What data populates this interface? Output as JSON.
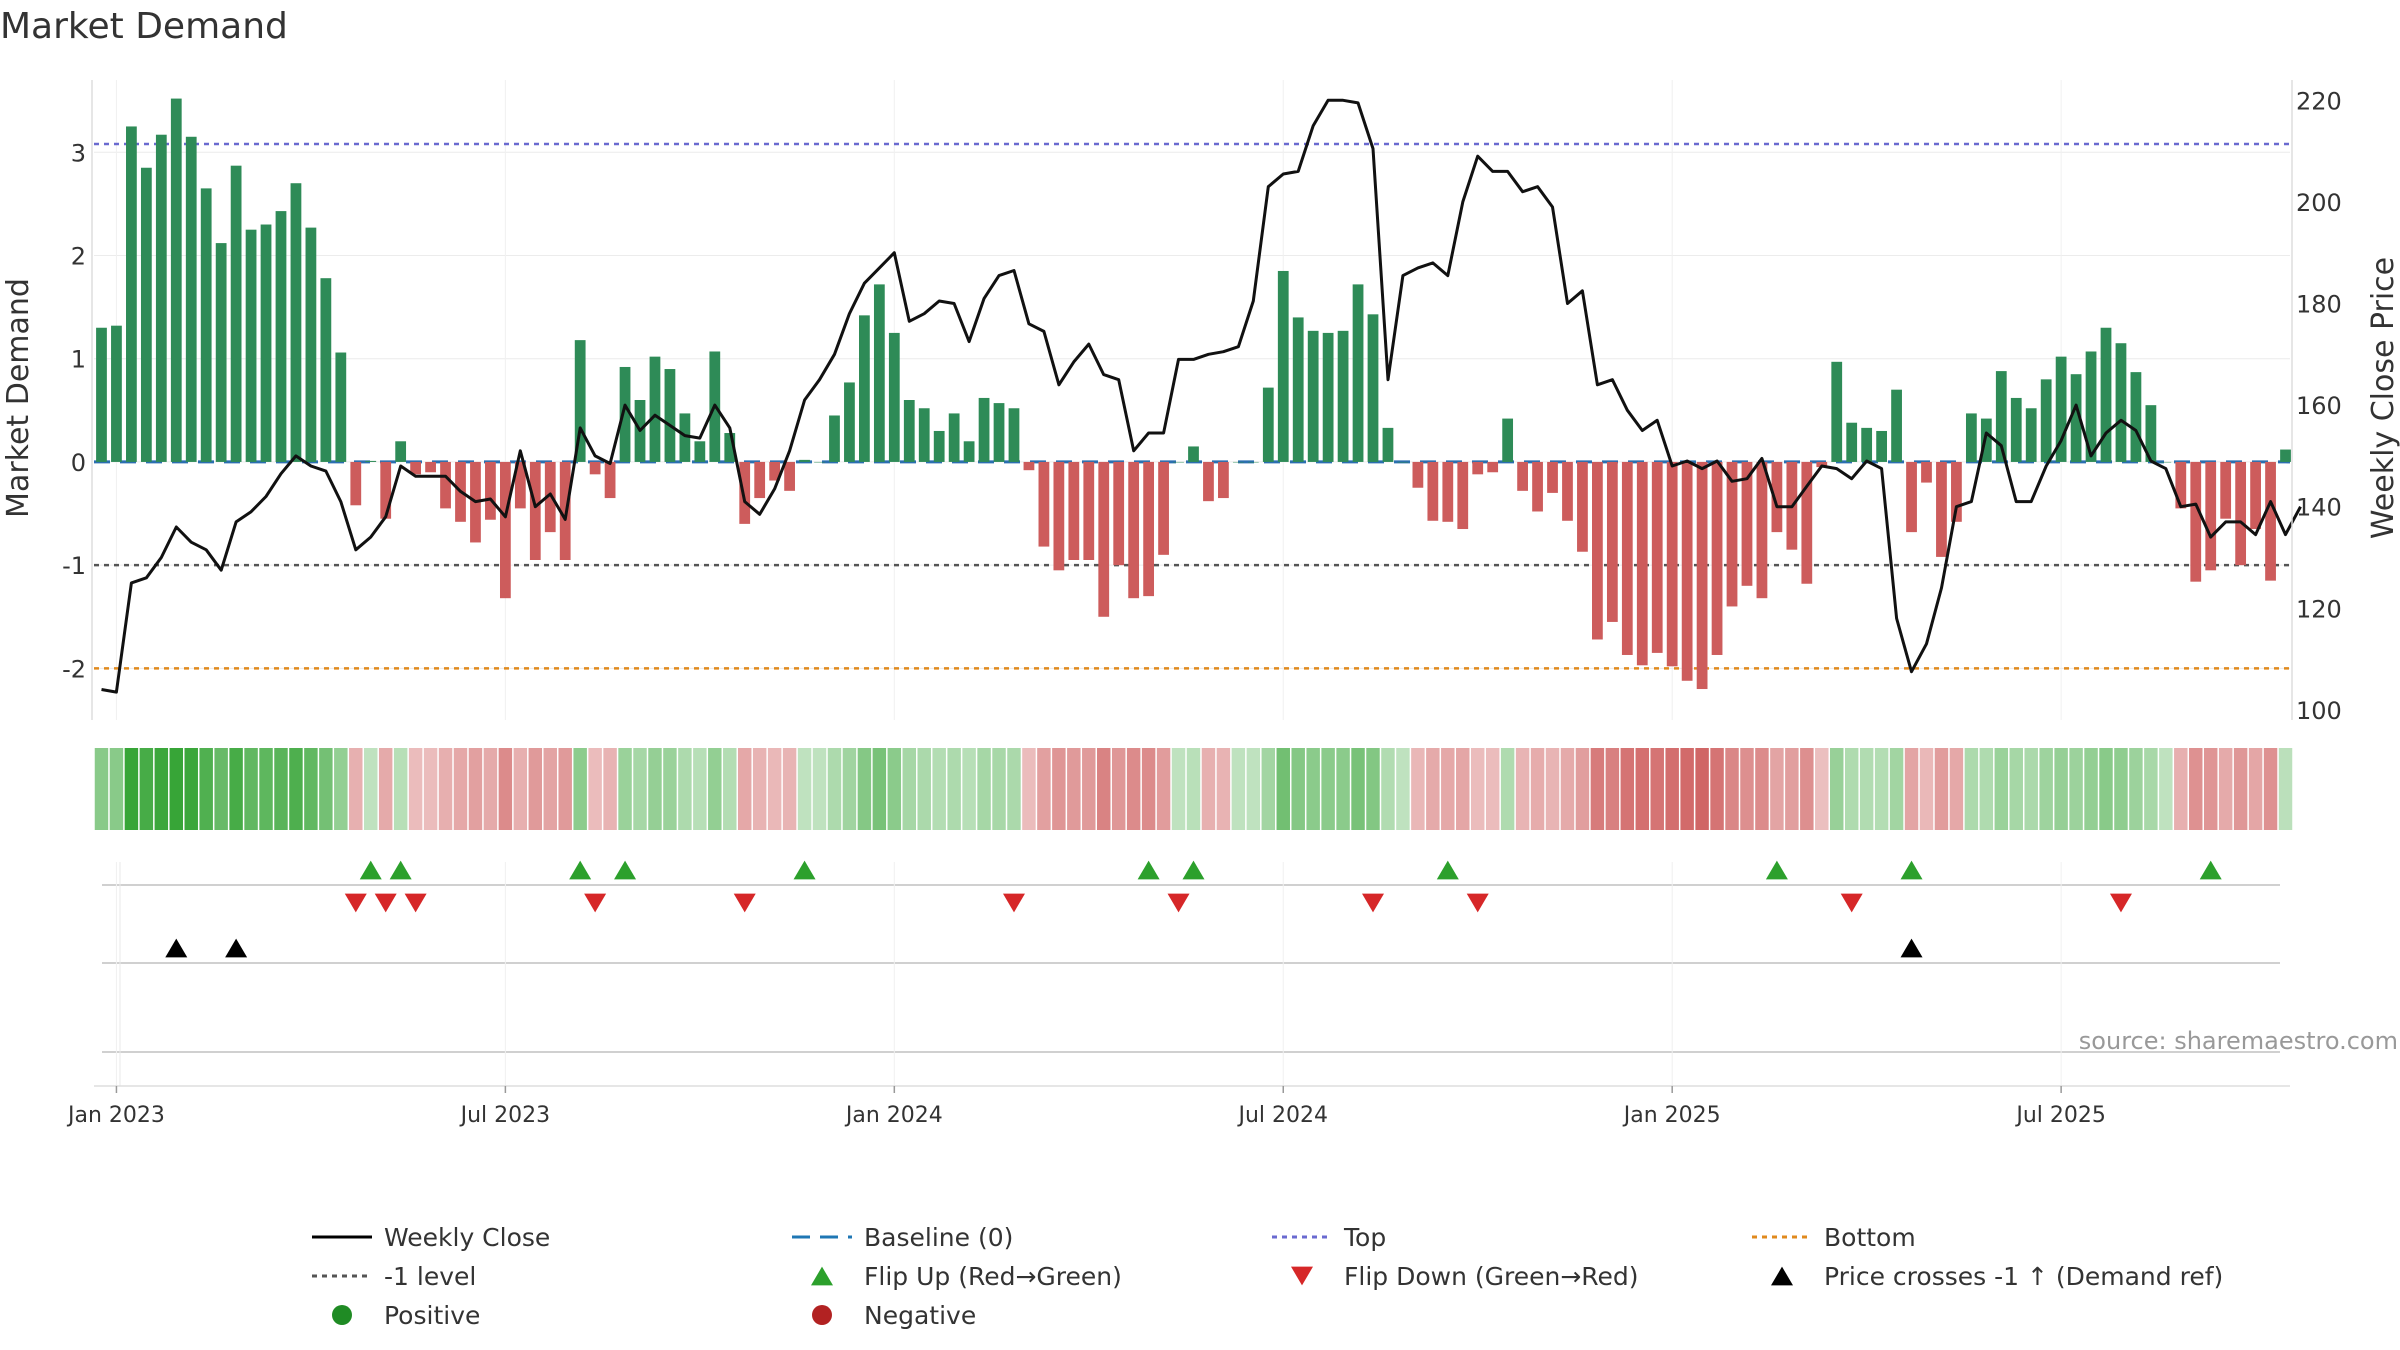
{
  "chart_data": {
    "type": "bar",
    "title": "Market Demand",
    "ylabel": "Market Demand",
    "y2label": "Weekly Close Price",
    "ylim": [
      -2.5,
      3.7
    ],
    "y2lim": [
      98,
      224
    ],
    "yticks": [
      -2,
      -1,
      0,
      1,
      2,
      3
    ],
    "y2ticks": [
      100,
      120,
      140,
      160,
      180,
      200,
      220
    ],
    "xticks": [
      "Jan 2023",
      "Jul 2023",
      "Jan 2024",
      "Jul 2024",
      "Jan 2025",
      "Jul 2025"
    ],
    "xtick_weeks": [
      1,
      27,
      53,
      79,
      105,
      131
    ],
    "reference_lines": {
      "top": 3.08,
      "minus_one": -1,
      "bottom": -2.0,
      "baseline": 0
    },
    "demand": [
      1.3,
      1.32,
      3.25,
      2.85,
      3.17,
      3.52,
      3.15,
      2.65,
      2.12,
      2.87,
      2.25,
      2.3,
      2.43,
      2.7,
      2.27,
      1.78,
      1.06,
      -0.42,
      0.01,
      -0.55,
      0.2,
      -0.12,
      -0.1,
      -0.45,
      -0.58,
      -0.78,
      -0.56,
      -1.32,
      -0.45,
      -0.95,
      -0.68,
      -0.95,
      1.18,
      -0.12,
      -0.35,
      0.92,
      0.6,
      1.02,
      0.9,
      0.47,
      0.2,
      1.07,
      0.28,
      -0.6,
      -0.35,
      -0.18,
      -0.28,
      0.02,
      0.0,
      0.45,
      0.77,
      1.42,
      1.72,
      1.25,
      0.6,
      0.52,
      0.3,
      0.47,
      0.2,
      0.62,
      0.57,
      0.52,
      -0.08,
      -0.82,
      -1.05,
      -0.95,
      -0.95,
      -1.5,
      -1.0,
      -1.32,
      -1.3,
      -0.9,
      0.0,
      0.15,
      -0.38,
      -0.35,
      0.0,
      0.0,
      0.72,
      1.85,
      1.4,
      1.27,
      1.25,
      1.27,
      1.72,
      1.43,
      0.33,
      0.0,
      -0.25,
      -0.57,
      -0.58,
      -0.65,
      -0.12,
      -0.1,
      0.42,
      -0.28,
      -0.48,
      -0.3,
      -0.57,
      -0.87,
      -1.72,
      -1.55,
      -1.87,
      -1.97,
      -1.85,
      -1.98,
      -2.12,
      -2.2,
      -1.87,
      -1.4,
      -1.2,
      -1.32,
      -0.68,
      -0.85,
      -1.18,
      -0.05,
      0.97,
      0.38,
      0.33,
      0.3,
      0.7,
      -0.68,
      -0.2,
      -0.92,
      -0.58,
      0.47,
      0.42,
      0.88,
      0.62,
      0.52,
      0.8,
      1.02,
      0.85,
      1.07,
      1.3,
      1.15,
      0.87,
      0.55,
      0.0,
      -0.45,
      -1.16,
      -1.05,
      -0.55,
      -1.0,
      -0.65,
      -1.15,
      0.12
    ],
    "close": [
      104,
      103.5,
      125,
      126,
      130,
      136,
      133,
      131.5,
      127.5,
      137,
      139,
      142,
      146.5,
      150,
      148,
      147,
      141,
      131.5,
      134,
      138,
      148,
      146,
      146,
      146,
      143,
      141,
      141.5,
      138,
      151,
      140,
      142.5,
      137.5,
      155.5,
      150,
      148.5,
      160,
      155,
      158,
      156,
      154,
      153.5,
      160,
      155.5,
      141,
      138.5,
      143.5,
      151,
      161,
      165,
      170,
      178,
      184,
      187,
      190,
      176.5,
      178,
      180.5,
      180,
      172.5,
      181,
      185.5,
      186.5,
      176,
      174.5,
      164,
      168.5,
      172,
      166,
      165,
      151,
      154.5,
      154.5,
      169,
      169,
      170,
      170.5,
      171.5,
      180.5,
      203,
      205.5,
      206,
      215,
      220,
      220,
      219.5,
      210.5,
      165,
      185.5,
      187,
      188,
      185.5,
      200,
      209,
      206,
      206,
      202,
      203,
      199,
      180,
      182.5,
      164,
      165,
      159,
      155,
      157,
      148,
      149,
      147.5,
      149,
      145,
      145.5,
      149.5,
      140,
      140,
      144,
      148,
      147.5,
      145.5,
      149,
      147.5,
      118,
      107.5,
      113,
      124,
      140,
      141,
      154.5,
      152,
      141,
      141,
      148,
      153,
      160,
      150,
      154.5,
      157,
      155,
      149,
      147.5,
      140,
      140.5,
      134,
      137,
      137,
      134.5,
      141,
      134.5,
      140
    ],
    "flip_up_weeks": [
      18,
      20,
      32,
      35,
      47,
      70,
      73,
      90,
      112,
      121,
      141
    ],
    "flip_down_weeks": [
      17,
      19,
      21,
      33,
      43,
      61,
      72,
      85,
      92,
      117,
      135
    ],
    "price_cross_weeks": [
      5,
      9,
      121
    ]
  },
  "legend": [
    {
      "label": "Weekly Close",
      "symbol": "line",
      "color": "#000000"
    },
    {
      "label": "Baseline (0)",
      "symbol": "dash",
      "color": "#1f77b4"
    },
    {
      "label": "Top",
      "symbol": "dot",
      "color": "#6a6ad0"
    },
    {
      "label": "Bottom",
      "symbol": "dot",
      "color": "#e08a1e"
    },
    {
      "label": "-1 level",
      "symbol": "dot",
      "color": "#555555"
    },
    {
      "label": "Flip Up (Red→Green)",
      "symbol": "tri-up",
      "color": "#2ca02c"
    },
    {
      "label": "Flip Down (Green→Red)",
      "symbol": "tri-down",
      "color": "#d62728"
    },
    {
      "label": "Price crosses -1 ↑ (Demand ref)",
      "symbol": "tri-up",
      "color": "#000000"
    },
    {
      "label": "Positive",
      "symbol": "circle",
      "color": "#1f8b24"
    },
    {
      "label": "Negative",
      "symbol": "circle",
      "color": "#b22222"
    }
  ],
  "source": "source: sharemaestro.com",
  "colors": {
    "positive_bar": "#2e8b57",
    "negative_bar": "#cd5c5c",
    "strip_positive": "#2ca02c",
    "strip_negative": "#c03030",
    "flip_up": "#2ca02c",
    "flip_down": "#d62728",
    "cross": "#000000"
  }
}
